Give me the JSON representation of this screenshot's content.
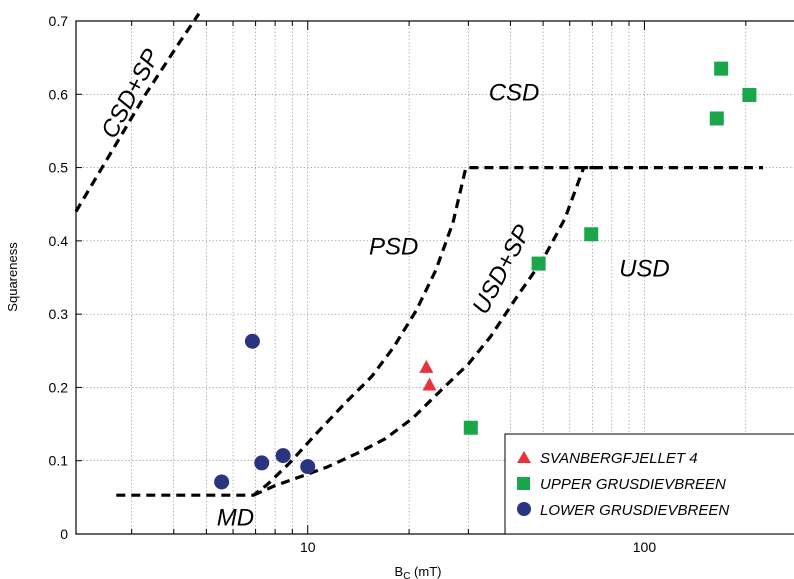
{
  "chart_data": {
    "type": "scatter",
    "title": "",
    "xlabel": "B",
    "xlabel_sub": "C",
    "xlabel_unit": " (mT)",
    "ylabel": "Squareness",
    "xscale": "log",
    "xlim": [
      2.05,
      280
    ],
    "ylim": [
      0,
      0.7
    ],
    "x_tick_labels": [
      {
        "value": 10,
        "label": "10"
      },
      {
        "value": 100,
        "label": "100"
      }
    ],
    "y_ticks": [
      0,
      0.1,
      0.2,
      0.3,
      0.4,
      0.5,
      0.6,
      0.7
    ],
    "y_tick_labels": [
      "0",
      "0.1",
      "0.2",
      "0.3",
      "0.4",
      "0.5",
      "0.6",
      "0.7"
    ],
    "grid": true,
    "legend_position": "bottom-right",
    "series": [
      {
        "name": "SVANBERGFJELLET 4",
        "marker": "triangle",
        "color": "#e8323c",
        "points": [
          {
            "x": 22.5,
            "y": 0.228
          },
          {
            "x": 23.0,
            "y": 0.204
          }
        ]
      },
      {
        "name": "UPPER GRUSDIEVBREEN",
        "marker": "square",
        "color": "#1aa64a",
        "points": [
          {
            "x": 30.5,
            "y": 0.145
          },
          {
            "x": 48.5,
            "y": 0.369
          },
          {
            "x": 69.5,
            "y": 0.409
          },
          {
            "x": 164,
            "y": 0.567
          },
          {
            "x": 169,
            "y": 0.635
          },
          {
            "x": 205,
            "y": 0.599
          }
        ]
      },
      {
        "name": "LOWER GRUSDIEVBREEN",
        "marker": "circle",
        "color": "#2b3480",
        "points": [
          {
            "x": 5.55,
            "y": 0.071
          },
          {
            "x": 6.85,
            "y": 0.263
          },
          {
            "x": 7.3,
            "y": 0.097
          },
          {
            "x": 8.45,
            "y": 0.107
          },
          {
            "x": 10.0,
            "y": 0.092
          }
        ]
      }
    ],
    "boundary_lines": [
      {
        "id": "csd-sp",
        "points": [
          [
            2.05,
            0.44
          ],
          [
            2.6,
            0.52
          ],
          [
            3.3,
            0.6
          ],
          [
            4.15,
            0.67
          ],
          [
            4.75,
            0.71
          ]
        ]
      },
      {
        "id": "md-psd-csd",
        "points": [
          [
            2.7,
            0.053
          ],
          [
            6.9,
            0.053
          ],
          [
            7.6,
            0.068
          ],
          [
            8.8,
            0.096
          ],
          [
            10.5,
            0.135
          ],
          [
            13.0,
            0.18
          ],
          [
            15.5,
            0.215
          ],
          [
            18.0,
            0.255
          ],
          [
            21.0,
            0.305
          ],
          [
            24.0,
            0.36
          ],
          [
            27.0,
            0.425
          ],
          [
            29.5,
            0.5
          ],
          [
            75,
            0.5
          ]
        ]
      },
      {
        "id": "usd-sp",
        "points": [
          [
            6.9,
            0.053
          ],
          [
            8.0,
            0.066
          ],
          [
            9.5,
            0.078
          ],
          [
            11.5,
            0.092
          ],
          [
            14.0,
            0.11
          ],
          [
            17.0,
            0.13
          ],
          [
            20.5,
            0.158
          ],
          [
            25.0,
            0.197
          ],
          [
            30.0,
            0.232
          ],
          [
            35.0,
            0.27
          ],
          [
            42.0,
            0.325
          ],
          [
            50.0,
            0.375
          ],
          [
            58.0,
            0.43
          ],
          [
            66.0,
            0.5
          ],
          [
            225,
            0.5
          ]
        ]
      }
    ],
    "region_labels": [
      {
        "text": "CSD",
        "x": 41,
        "y": 0.6,
        "rotate": 0
      },
      {
        "text": "PSD",
        "x": 18,
        "y": 0.39,
        "rotate": 0
      },
      {
        "text": "USD",
        "x": 100,
        "y": 0.36,
        "rotate": 0
      },
      {
        "text": "MD",
        "x": 6.1,
        "y": 0.02,
        "rotate": 0
      },
      {
        "text": "CSD+SP",
        "x": 3.0,
        "y": 0.6,
        "rotate": -62
      },
      {
        "text": "USD+SP",
        "x": 38,
        "y": 0.36,
        "rotate": -62
      }
    ]
  }
}
